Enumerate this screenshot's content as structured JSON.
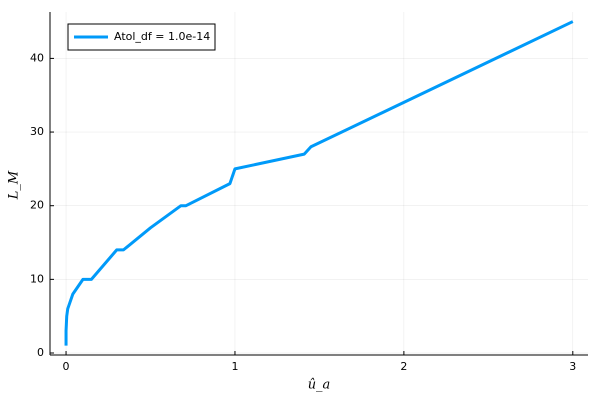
{
  "chart_data": {
    "type": "line",
    "x": [
      0,
      0,
      0,
      0.002,
      0.004,
      0.01,
      0.04,
      0.1,
      0.15,
      0.3,
      0.34,
      0.5,
      0.68,
      0.71,
      0.97,
      1,
      1.41,
      1.45,
      3
    ],
    "series": [
      {
        "name": "Atol_df = 1.0e-14",
        "color": "#009af9",
        "values": [
          1,
          2,
          3,
          4,
          5,
          6,
          8,
          10,
          10,
          14,
          14,
          17,
          20,
          20,
          23,
          25,
          27,
          28,
          45
        ]
      }
    ],
    "xlabel": "û_a",
    "ylabel": "L_M",
    "xlim": [
      -0.095,
      3.09
    ],
    "ylim": [
      -0.27,
      46.3
    ],
    "xticks": [
      0,
      1,
      2,
      3
    ],
    "yticks": [
      0,
      10,
      20,
      30,
      40
    ],
    "grid": true,
    "legend": "top-left"
  }
}
